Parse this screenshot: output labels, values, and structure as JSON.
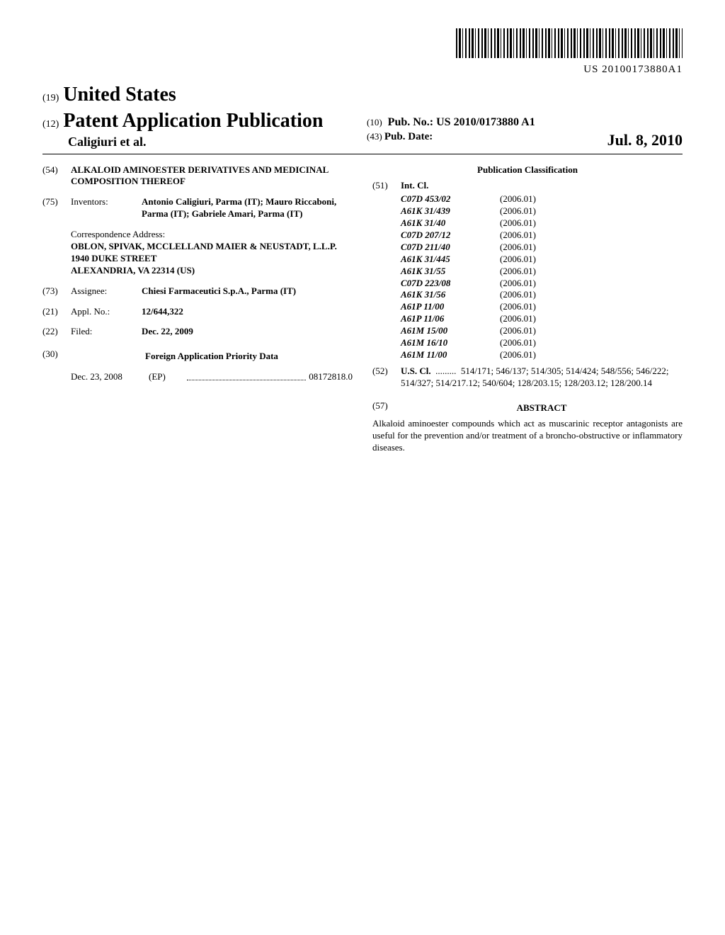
{
  "barcode_text": "US 20100173880A1",
  "authority_prefix": "(19)",
  "authority": "United States",
  "pub_prefix": "(12)",
  "pub_type": "Patent Application Publication",
  "authors_line": "Caligiuri et al.",
  "pub_no_prefix": "(10)",
  "pub_no_label": "Pub. No.:",
  "pub_no": "US 2010/0173880 A1",
  "pub_date_prefix": "(43)",
  "pub_date_label": "Pub. Date:",
  "pub_date": "Jul. 8, 2010",
  "title": {
    "code": "(54)",
    "text": "ALKALOID AMINOESTER DERIVATIVES AND MEDICINAL COMPOSITION THEREOF"
  },
  "inventors": {
    "code": "(75)",
    "label": "Inventors:",
    "list": "Antonio Caligiuri, Parma (IT); Mauro Riccaboni, Parma (IT); Gabriele Amari, Parma (IT)"
  },
  "correspondence": {
    "label": "Correspondence Address:",
    "lines": [
      "OBLON, SPIVAK, MCCLELLAND MAIER & NEUSTADT, L.L.P.",
      "1940 DUKE STREET",
      "ALEXANDRIA, VA 22314 (US)"
    ]
  },
  "assignee": {
    "code": "(73)",
    "label": "Assignee:",
    "value": "Chiesi Farmaceutici S.p.A., Parma (IT)"
  },
  "appl_no": {
    "code": "(21)",
    "label": "Appl. No.:",
    "value": "12/644,322"
  },
  "filed": {
    "code": "(22)",
    "label": "Filed:",
    "value": "Dec. 22, 2009"
  },
  "foreign_priority": {
    "code": "(30)",
    "heading": "Foreign Application Priority Data",
    "date": "Dec. 23, 2008",
    "jurisdiction": "(EP)",
    "number": "08172818.0"
  },
  "classification_heading": "Publication Classification",
  "int_cl": {
    "code": "(51)",
    "label": "Int. Cl.",
    "rows": [
      {
        "code": "C07D 453/02",
        "year": "(2006.01)"
      },
      {
        "code": "A61K 31/439",
        "year": "(2006.01)"
      },
      {
        "code": "A61K 31/40",
        "year": "(2006.01)"
      },
      {
        "code": "C07D 207/12",
        "year": "(2006.01)"
      },
      {
        "code": "C07D 211/40",
        "year": "(2006.01)"
      },
      {
        "code": "A61K 31/445",
        "year": "(2006.01)"
      },
      {
        "code": "A61K 31/55",
        "year": "(2006.01)"
      },
      {
        "code": "C07D 223/08",
        "year": "(2006.01)"
      },
      {
        "code": "A61K 31/56",
        "year": "(2006.01)"
      },
      {
        "code": "A61P 11/00",
        "year": "(2006.01)"
      },
      {
        "code": "A61P 11/06",
        "year": "(2006.01)"
      },
      {
        "code": "A61M 15/00",
        "year": "(2006.01)"
      },
      {
        "code": "A61M 16/10",
        "year": "(2006.01)"
      },
      {
        "code": "A61M 11/00",
        "year": "(2006.01)"
      }
    ]
  },
  "us_cl": {
    "code": "(52)",
    "label": "U.S. Cl.",
    "value": "514/171; 546/137; 514/305; 514/424; 548/556; 546/222; 514/327; 514/217.12; 540/604; 128/203.15; 128/203.12; 128/200.14"
  },
  "abstract": {
    "code": "(57)",
    "heading": "ABSTRACT",
    "body": "Alkaloid aminoester compounds which act as muscarinic receptor antagonists are useful for the prevention and/or treatment of a broncho-obstructive or inflammatory diseases."
  }
}
